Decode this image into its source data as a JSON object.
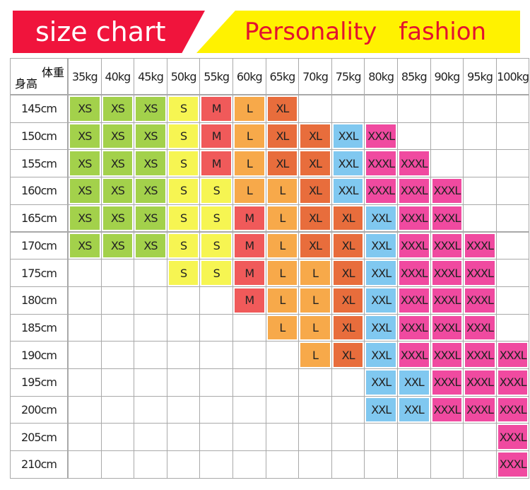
{
  "header": {
    "left": "size chart",
    "right": "Personality fashion"
  },
  "table": {
    "corner_top": "体重",
    "corner_bottom": "身高",
    "weights": [
      "35kg",
      "40kg",
      "45kg",
      "50kg",
      "55kg",
      "60kg",
      "65kg",
      "70kg",
      "75kg",
      "80kg",
      "85kg",
      "90kg",
      "95kg",
      "100kg"
    ],
    "heights": [
      "145cm",
      "150cm",
      "155cm",
      "160cm",
      "165cm",
      "170cm",
      "175cm",
      "180cm",
      "185cm",
      "190cm",
      "195cm",
      "200cm",
      "205cm",
      "210cm"
    ],
    "size_colors": {
      "XS": "#a3d14b",
      "S": "#f6f552",
      "M": "#f05a5a",
      "L": "#f7a94a",
      "XL": "#e86d3c",
      "XXL": "#80c8f0",
      "XXXL": "#f04aa0"
    },
    "rows": [
      [
        "XS",
        "XS",
        "XS",
        "S",
        "M",
        "L",
        "XL",
        null,
        null,
        null,
        null,
        null,
        null,
        null
      ],
      [
        "XS",
        "XS",
        "XS",
        "S",
        "M",
        "L",
        "XL",
        "XL",
        "XXL",
        "XXXL",
        null,
        null,
        null,
        null
      ],
      [
        "XS",
        "XS",
        "XS",
        "S",
        "M",
        "L",
        "XL",
        "XL",
        "XXL",
        "XXXL",
        "XXXL",
        null,
        null,
        null
      ],
      [
        "XS",
        "XS",
        "XS",
        "S",
        "S",
        "L",
        "L",
        "XL",
        "XXL",
        "XXXL",
        "XXXL",
        "XXXL",
        null,
        null
      ],
      [
        "XS",
        "XS",
        "XS",
        "S",
        "S",
        "M",
        "L",
        "XL",
        "XL",
        "XXL",
        "XXXL",
        "XXXL",
        null,
        null
      ],
      [
        "XS",
        "XS",
        "XS",
        "S",
        "S",
        "M",
        "L",
        "XL",
        "XL",
        "XXL",
        "XXXL",
        "XXXL",
        "XXXL",
        null
      ],
      [
        null,
        null,
        null,
        "S",
        "S",
        "M",
        "L",
        "L",
        "XL",
        "XXL",
        "XXXL",
        "XXXL",
        "XXXL",
        null
      ],
      [
        null,
        null,
        null,
        null,
        null,
        "M",
        "L",
        "L",
        "XL",
        "XXL",
        "XXXL",
        "XXXL",
        "XXXL",
        null
      ],
      [
        null,
        null,
        null,
        null,
        null,
        null,
        "L",
        "L",
        "XL",
        "XXL",
        "XXXL",
        "XXXL",
        "XXXL",
        null
      ],
      [
        null,
        null,
        null,
        null,
        null,
        null,
        null,
        "L",
        "XL",
        "XXL",
        "XXXL",
        "XXXL",
        "XXXL",
        "XXXL"
      ],
      [
        null,
        null,
        null,
        null,
        null,
        null,
        null,
        null,
        null,
        "XXL",
        "XXL",
        "XXXL",
        "XXXL",
        "XXXL"
      ],
      [
        null,
        null,
        null,
        null,
        null,
        null,
        null,
        null,
        null,
        "XXL",
        "XXL",
        "XXXL",
        "XXXL",
        "XXXL"
      ],
      [
        null,
        null,
        null,
        null,
        null,
        null,
        null,
        null,
        null,
        null,
        null,
        null,
        null,
        "XXXL"
      ],
      [
        null,
        null,
        null,
        null,
        null,
        null,
        null,
        null,
        null,
        null,
        null,
        null,
        null,
        "XXXL"
      ]
    ]
  }
}
